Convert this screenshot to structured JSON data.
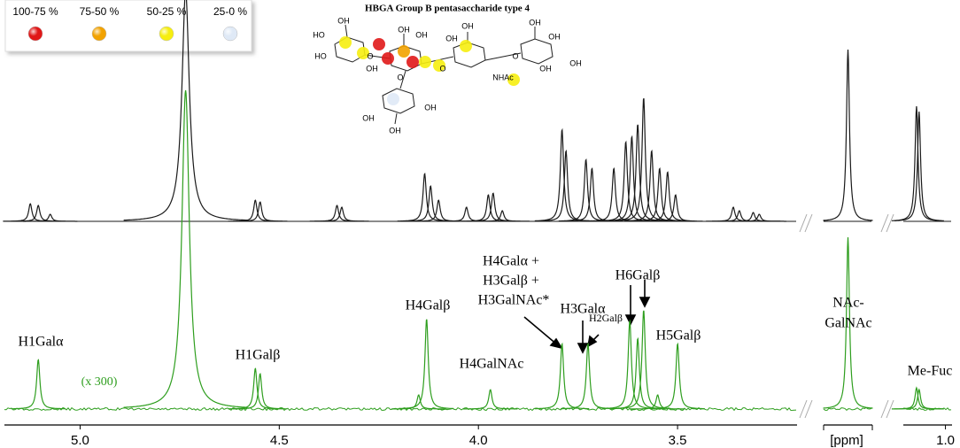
{
  "chart_data": {
    "type": "nmr",
    "title": "HBGA Group B pentasaccharide type 4",
    "legend": {
      "labels": [
        "100-75 %",
        "75-50 %",
        "50-25 %",
        "25-0 %"
      ],
      "colors": [
        "#e01818",
        "#f2a200",
        "#f6ee10",
        "#dfe9f6"
      ]
    },
    "molecule_labels": [
      "HO",
      "OH",
      "OH",
      "OH",
      "HO",
      "OH",
      "OH",
      "OH",
      "NHAc",
      "OH",
      "OH",
      "OH",
      "OH",
      "O",
      "O",
      "O",
      "O",
      "OH",
      "OH",
      "OH"
    ],
    "xlim": [
      5.19,
      3.2
    ],
    "xticks": [
      {
        "value": 5.0,
        "label": "5.0"
      },
      {
        "value": 4.5,
        "label": "4.5"
      },
      {
        "value": 4.0,
        "label": "4.0"
      },
      {
        "value": 3.5,
        "label": "3.5"
      }
    ],
    "series": [
      {
        "color": "#1a1a1a",
        "x": [
          5.125,
          5.105,
          5.075,
          4.735,
          4.56,
          4.548,
          4.355,
          4.343,
          4.135,
          4.12,
          4.1,
          4.03,
          3.975,
          3.963,
          3.94,
          3.79,
          3.78,
          3.73,
          3.715,
          3.66,
          3.63,
          3.615,
          3.6,
          3.585,
          3.565,
          3.545,
          3.525,
          3.505,
          3.36,
          3.345,
          3.31,
          3.295
        ],
        "values": [
          10,
          9,
          4,
          130,
          12,
          11,
          9,
          8,
          27,
          20,
          12,
          8,
          15,
          16,
          6,
          52,
          40,
          35,
          30,
          30,
          45,
          48,
          55,
          70,
          40,
          30,
          28,
          15,
          8,
          6,
          5,
          4
        ]
      },
      {
        "color": "#2e9e1e",
        "x": [
          5.105,
          4.735,
          4.56,
          4.548,
          4.15,
          4.13,
          3.97,
          3.79,
          3.725,
          3.62,
          3.6,
          3.585,
          3.55,
          3.5
        ],
        "values": [
          28,
          180,
          23,
          20,
          8,
          51,
          11,
          37,
          37,
          50,
          40,
          56,
          8,
          37
        ]
      }
    ],
    "insets": [
      {
        "xlabel": "[ppm]",
        "xlim": [
          2.15,
          1.95
        ],
        "series": [
          {
            "color": "#1a1a1a",
            "x": [
              2.05
            ],
            "values": [
              97
            ]
          },
          {
            "color": "#2e9e1e",
            "x": [
              2.05
            ],
            "values": [
              97
            ]
          }
        ]
      },
      {
        "xlim": [
          1.32,
          0.95
        ],
        "xticks": [
          {
            "value": 1.0,
            "label": "1.0"
          }
        ],
        "series": [
          {
            "color": "#1a1a1a",
            "x": [
              1.22,
              1.2
            ],
            "values": [
              65,
              62
            ]
          },
          {
            "color": "#2e9e1e",
            "x": [
              1.22,
              1.2
            ],
            "values": [
              12,
              11
            ]
          }
        ]
      }
    ],
    "annotations": [
      "H1Galα",
      "(x 300)",
      "H1Galβ",
      "H4Galβ",
      "H4GalNAc",
      "H4Galα +",
      "H3Galβ +",
      "H3GalNAc*",
      "H3Galα",
      "H2Galβ",
      "H6Galβ",
      "H5Galβ",
      "NAc-",
      "GalNAc",
      "Me-Fuc"
    ]
  }
}
